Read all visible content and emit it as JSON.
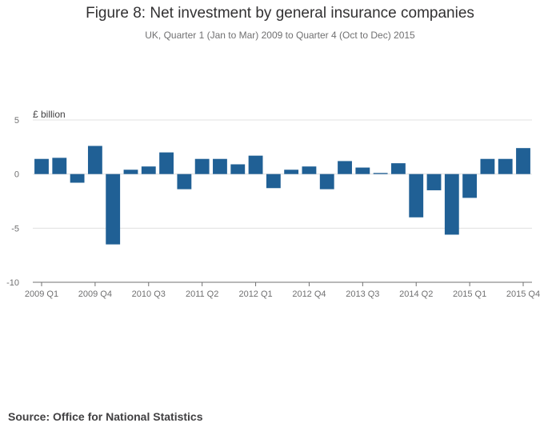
{
  "title": "Figure 8: Net investment by general insurance companies",
  "subtitle": "UK, Quarter 1 (Jan to Mar) 2009 to Quarter 4 (Oct to Dec) 2015",
  "source": "Source: Office for National Statistics",
  "colors": {
    "bar": "#206095",
    "grid": "#e0e0e0",
    "axis": "#707071",
    "text": "#707071"
  },
  "chart_data": {
    "type": "bar",
    "ylabel": "£ billion",
    "ylim": [
      -10,
      5
    ],
    "yticks": [
      5,
      0,
      -5,
      -10
    ],
    "grid": true,
    "categories": [
      "2009 Q1",
      "2009 Q2",
      "2009 Q3",
      "2009 Q4",
      "2010 Q1",
      "2010 Q2",
      "2010 Q3",
      "2010 Q4",
      "2011 Q1",
      "2011 Q2",
      "2011 Q3",
      "2011 Q4",
      "2012 Q1",
      "2012 Q2",
      "2012 Q3",
      "2012 Q4",
      "2013 Q1",
      "2013 Q2",
      "2013 Q3",
      "2013 Q4",
      "2014 Q1",
      "2014 Q2",
      "2014 Q3",
      "2014 Q4",
      "2015 Q1",
      "2015 Q2",
      "2015 Q3",
      "2015 Q4"
    ],
    "xtick_labels": [
      "2009 Q1",
      "2009 Q4",
      "2010 Q3",
      "2011 Q2",
      "2012 Q1",
      "2012 Q4",
      "2013 Q3",
      "2014 Q2",
      "2015 Q1",
      "2015 Q4"
    ],
    "values": [
      1.4,
      1.5,
      -0.8,
      2.6,
      -6.5,
      0.4,
      0.7,
      2.0,
      -1.4,
      1.4,
      1.4,
      0.9,
      1.7,
      -1.3,
      0.4,
      0.7,
      -1.4,
      1.2,
      0.6,
      0.1,
      1.0,
      -4.0,
      -1.5,
      -5.6,
      -2.2,
      1.4,
      1.4,
      2.4
    ]
  }
}
